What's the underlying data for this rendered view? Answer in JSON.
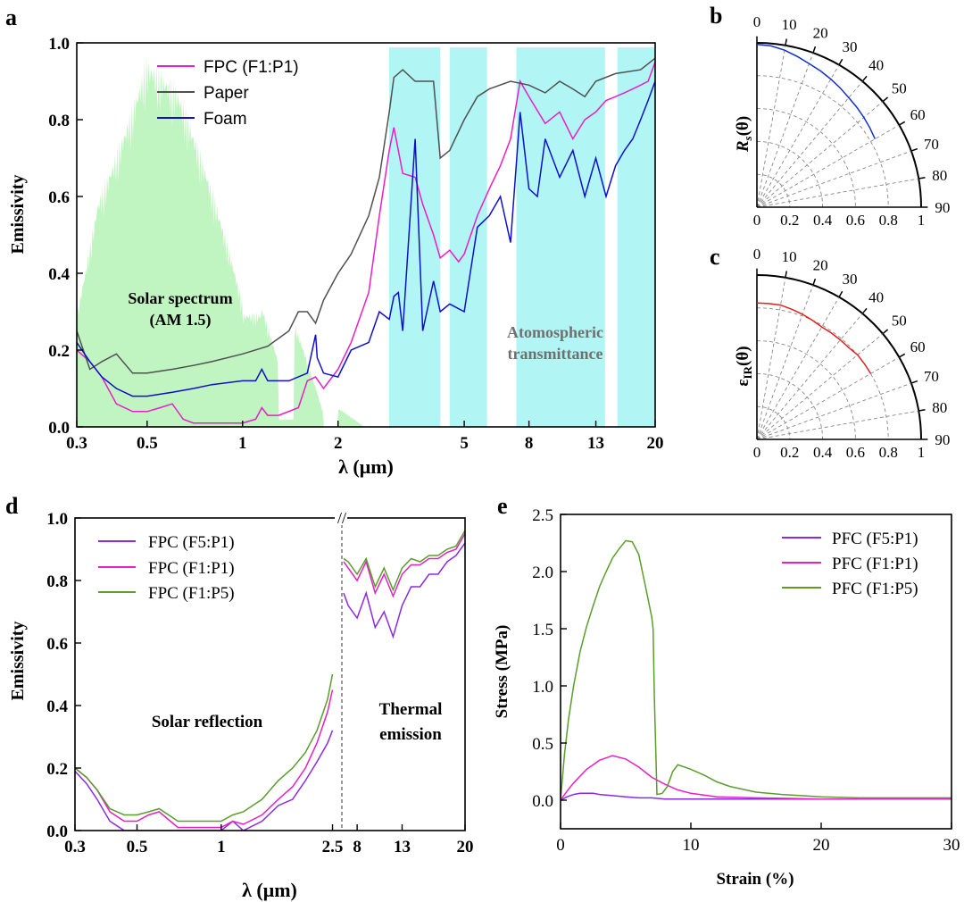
{
  "chart_data": [
    {
      "id": "a",
      "type": "line",
      "panel_label": "a",
      "title": "",
      "xlabel": "λ (μm)",
      "ylabel": "Emissivity",
      "xscale": "log",
      "xlim": [
        0.3,
        20
      ],
      "ylim": [
        0,
        1.0
      ],
      "xticks": [
        0.3,
        0.5,
        1,
        2,
        5,
        8,
        13,
        20
      ],
      "xtick_labels": [
        "0.3",
        "0.5",
        "1",
        "2",
        "5",
        "8",
        "13",
        "20"
      ],
      "yticks": [
        0.0,
        0.2,
        0.4,
        0.6,
        0.8,
        1.0
      ],
      "ytick_labels": [
        "0.0",
        "0.2",
        "0.4",
        "0.6",
        "0.8",
        "1.0"
      ],
      "legend_position": "top-left",
      "series": [
        {
          "name": "FPC (F1:P1)",
          "color": "#e81ec8",
          "x": [
            0.3,
            0.33,
            0.36,
            0.4,
            0.45,
            0.5,
            0.55,
            0.6,
            0.65,
            0.7,
            0.8,
            1.0,
            1.1,
            1.15,
            1.2,
            1.3,
            1.5,
            1.6,
            1.7,
            1.8,
            2.0,
            2.2,
            2.5,
            2.7,
            2.9,
            3.0,
            3.2,
            3.5,
            3.7,
            4.0,
            4.2,
            4.5,
            4.8,
            5.0,
            5.5,
            6.0,
            6.5,
            7.0,
            7.5,
            8.0,
            9.0,
            10.0,
            11.0,
            12.0,
            13.0,
            14.0,
            15.0,
            16.0,
            17.0,
            18.0,
            19.0,
            20.0
          ],
          "y": [
            0.2,
            0.17,
            0.13,
            0.06,
            0.04,
            0.04,
            0.05,
            0.06,
            0.02,
            0.01,
            0.01,
            0.01,
            0.02,
            0.05,
            0.03,
            0.03,
            0.05,
            0.12,
            0.13,
            0.1,
            0.15,
            0.22,
            0.35,
            0.55,
            0.72,
            0.78,
            0.66,
            0.65,
            0.58,
            0.5,
            0.44,
            0.46,
            0.43,
            0.45,
            0.55,
            0.62,
            0.68,
            0.75,
            0.9,
            0.86,
            0.79,
            0.82,
            0.75,
            0.8,
            0.82,
            0.85,
            0.86,
            0.87,
            0.88,
            0.89,
            0.9,
            0.95
          ]
        },
        {
          "name": "Paper",
          "color": "#505050",
          "x": [
            0.3,
            0.33,
            0.36,
            0.4,
            0.45,
            0.5,
            0.6,
            0.7,
            0.8,
            1.0,
            1.2,
            1.4,
            1.5,
            1.6,
            1.7,
            1.8,
            2.0,
            2.2,
            2.5,
            2.7,
            2.9,
            3.0,
            3.2,
            3.5,
            4.0,
            4.2,
            4.5,
            5.0,
            5.5,
            6.0,
            7.0,
            8.0,
            9.0,
            10.0,
            11.0,
            12.0,
            13.0,
            15.0,
            18.0,
            20.0
          ],
          "y": [
            0.25,
            0.15,
            0.17,
            0.19,
            0.14,
            0.14,
            0.15,
            0.16,
            0.17,
            0.19,
            0.21,
            0.25,
            0.3,
            0.3,
            0.27,
            0.33,
            0.4,
            0.45,
            0.55,
            0.65,
            0.82,
            0.91,
            0.93,
            0.9,
            0.9,
            0.7,
            0.72,
            0.8,
            0.86,
            0.88,
            0.9,
            0.89,
            0.87,
            0.9,
            0.88,
            0.86,
            0.9,
            0.92,
            0.93,
            0.96
          ]
        },
        {
          "name": "Foam",
          "color": "#1010c8",
          "x": [
            0.3,
            0.33,
            0.36,
            0.4,
            0.45,
            0.5,
            0.6,
            0.7,
            0.8,
            1.0,
            1.1,
            1.15,
            1.2,
            1.4,
            1.6,
            1.7,
            1.72,
            1.8,
            2.0,
            2.2,
            2.5,
            2.7,
            2.9,
            3.0,
            3.1,
            3.2,
            3.5,
            3.7,
            4.0,
            4.2,
            4.5,
            5.0,
            5.5,
            6.0,
            6.5,
            7.0,
            7.5,
            8.0,
            8.5,
            9.0,
            10.0,
            11.0,
            12.0,
            13.0,
            14.0,
            15.0,
            16.0,
            17.0,
            18.0,
            19.0,
            20.0
          ],
          "y": [
            0.22,
            0.17,
            0.13,
            0.1,
            0.08,
            0.08,
            0.09,
            0.1,
            0.11,
            0.12,
            0.12,
            0.15,
            0.12,
            0.12,
            0.14,
            0.24,
            0.18,
            0.14,
            0.13,
            0.2,
            0.22,
            0.3,
            0.28,
            0.34,
            0.35,
            0.25,
            0.75,
            0.25,
            0.38,
            0.3,
            0.32,
            0.3,
            0.52,
            0.55,
            0.6,
            0.48,
            0.82,
            0.62,
            0.6,
            0.75,
            0.65,
            0.72,
            0.6,
            0.7,
            0.6,
            0.68,
            0.72,
            0.75,
            0.8,
            0.85,
            0.9
          ]
        }
      ],
      "annotations": [
        "Solar spectrum",
        "(AM 1.5)",
        "Atomospheric",
        "transmittance"
      ]
    },
    {
      "id": "b",
      "type": "polar",
      "panel_label": "b",
      "ylabel_main": "R",
      "ylabel_sub": "s",
      "ylabel_arg": "(θ)",
      "angle_ticks": [
        0,
        10,
        20,
        30,
        40,
        50,
        60,
        70,
        80,
        90
      ],
      "angle_tick_labels": [
        "0",
        "10",
        "20",
        "30",
        "40",
        "50",
        "60",
        "70",
        "80",
        "90"
      ],
      "radial_ticks": [
        0,
        0.2,
        0.4,
        0.6,
        0.8,
        1
      ],
      "radial_tick_labels": [
        "0",
        "0.2",
        "0.4",
        "0.6",
        "0.8",
        "1"
      ],
      "series": [
        {
          "color": "#1030d0",
          "theta": [
            0,
            5,
            10,
            15,
            20,
            25,
            30,
            35,
            40,
            45,
            50,
            55,
            60
          ],
          "r": [
            0.99,
            0.985,
            0.97,
            0.95,
            0.93,
            0.915,
            0.9,
            0.885,
            0.87,
            0.86,
            0.85,
            0.84,
            0.83
          ]
        }
      ]
    },
    {
      "id": "c",
      "type": "polar",
      "panel_label": "c",
      "ylabel_main": "ε",
      "ylabel_sub": "IR",
      "ylabel_arg": "(θ)",
      "angle_ticks": [
        0,
        10,
        20,
        30,
        40,
        50,
        60,
        70,
        80,
        90
      ],
      "angle_tick_labels": [
        "0",
        "10",
        "20",
        "30",
        "40",
        "50",
        "60",
        "70",
        "80",
        "90"
      ],
      "radial_ticks": [
        0,
        0.2,
        0.4,
        0.6,
        0.8,
        1
      ],
      "radial_tick_labels": [
        "0",
        "0.2",
        "0.4",
        "0.6",
        "0.8",
        "1"
      ],
      "series": [
        {
          "color": "#e02020",
          "theta": [
            0,
            5,
            10,
            15,
            20,
            25,
            30,
            35,
            40,
            45,
            50,
            55,
            60
          ],
          "r": [
            0.83,
            0.83,
            0.83,
            0.82,
            0.81,
            0.8,
            0.79,
            0.79,
            0.79,
            0.79,
            0.8,
            0.8,
            0.8
          ]
        }
      ]
    },
    {
      "id": "d",
      "type": "line",
      "panel_label": "d",
      "xlabel": "λ (μm)",
      "ylabel": "Emissivity",
      "ylim": [
        0,
        1.0
      ],
      "xticks_left": [
        0.3,
        0.5,
        1,
        2.5
      ],
      "xtick_labels_left": [
        "0.3",
        "0.5",
        "1",
        "2.5"
      ],
      "xticks_right": [
        8,
        13,
        20
      ],
      "xtick_labels_right": [
        "8",
        "13",
        "20"
      ],
      "break_symbol": "//",
      "yticks": [
        0.0,
        0.2,
        0.4,
        0.6,
        0.8,
        1.0
      ],
      "ytick_labels": [
        "0.0",
        "0.2",
        "0.4",
        "0.6",
        "0.8",
        "1.0"
      ],
      "legend_position": "top-left",
      "series": [
        {
          "name": "FPC (F5:P1)",
          "color": "#8a2be2",
          "x_left": [
            0.3,
            0.33,
            0.36,
            0.4,
            0.45,
            0.5,
            0.55,
            0.6,
            0.7,
            0.8,
            1.0,
            1.1,
            1.2,
            1.4,
            1.6,
            1.8,
            2.0,
            2.2,
            2.4,
            2.5
          ],
          "y_left": [
            0.19,
            0.15,
            0.1,
            0.03,
            0.0,
            0.0,
            0.0,
            0.0,
            0.0,
            0.0,
            0.0,
            0.03,
            0.0,
            0.03,
            0.08,
            0.1,
            0.16,
            0.22,
            0.28,
            0.32
          ],
          "x_right": [
            6.5,
            7,
            8,
            9,
            10,
            11,
            12,
            13,
            14,
            15,
            16,
            17,
            18,
            19,
            20
          ],
          "y_right": [
            0.76,
            0.72,
            0.68,
            0.76,
            0.65,
            0.7,
            0.62,
            0.72,
            0.78,
            0.78,
            0.82,
            0.82,
            0.86,
            0.88,
            0.92
          ]
        },
        {
          "name": "FPC (F1:P1)",
          "color": "#e81ec8",
          "x_left": [
            0.3,
            0.33,
            0.36,
            0.4,
            0.45,
            0.5,
            0.55,
            0.6,
            0.7,
            0.8,
            1.0,
            1.1,
            1.2,
            1.4,
            1.6,
            1.8,
            2.0,
            2.2,
            2.4,
            2.5
          ],
          "y_left": [
            0.2,
            0.17,
            0.13,
            0.06,
            0.03,
            0.03,
            0.05,
            0.06,
            0.01,
            0.01,
            0.01,
            0.03,
            0.02,
            0.05,
            0.1,
            0.14,
            0.2,
            0.28,
            0.38,
            0.45
          ],
          "x_right": [
            6.5,
            7,
            8,
            9,
            10,
            11,
            12,
            13,
            14,
            15,
            16,
            17,
            18,
            19,
            20
          ],
          "y_right": [
            0.86,
            0.84,
            0.8,
            0.86,
            0.76,
            0.82,
            0.75,
            0.82,
            0.85,
            0.85,
            0.87,
            0.87,
            0.89,
            0.9,
            0.95
          ]
        },
        {
          "name": "FPC (F1:P5)",
          "color": "#5a9e2a",
          "x_left": [
            0.3,
            0.33,
            0.36,
            0.4,
            0.45,
            0.5,
            0.55,
            0.6,
            0.7,
            0.8,
            1.0,
            1.1,
            1.2,
            1.4,
            1.6,
            1.8,
            2.0,
            2.2,
            2.4,
            2.5
          ],
          "y_left": [
            0.2,
            0.17,
            0.13,
            0.07,
            0.05,
            0.05,
            0.06,
            0.07,
            0.03,
            0.03,
            0.03,
            0.05,
            0.06,
            0.1,
            0.16,
            0.2,
            0.25,
            0.32,
            0.42,
            0.5
          ],
          "x_right": [
            6.5,
            7,
            8,
            9,
            10,
            11,
            12,
            13,
            14,
            15,
            16,
            17,
            18,
            19,
            20
          ],
          "y_right": [
            0.87,
            0.86,
            0.82,
            0.87,
            0.78,
            0.84,
            0.77,
            0.84,
            0.87,
            0.86,
            0.88,
            0.88,
            0.9,
            0.91,
            0.96
          ]
        }
      ],
      "annotations": [
        "Solar reflection",
        "Thermal",
        "emission"
      ]
    },
    {
      "id": "e",
      "type": "line",
      "panel_label": "e",
      "xlabel": "Strain (%)",
      "ylabel": "Stress (MPa)",
      "xlim": [
        0,
        30
      ],
      "ylim": [
        -0.25,
        2.5
      ],
      "xticks": [
        0,
        10,
        20,
        30
      ],
      "xtick_labels": [
        "0",
        "10",
        "20",
        "30"
      ],
      "yticks": [
        0.0,
        0.5,
        1.0,
        1.5,
        2.0,
        2.5
      ],
      "ytick_labels": [
        "0.0",
        "0.5",
        "1.0",
        "1.5",
        "2.0",
        "2.5"
      ],
      "legend_position": "top-right",
      "series": [
        {
          "name": "PFC (F5:P1)",
          "color": "#8a2be2",
          "x": [
            0,
            0.5,
            1,
            1.5,
            2,
            2.5,
            3,
            4,
            5,
            6,
            7,
            8,
            10,
            15,
            20,
            25,
            30
          ],
          "y": [
            0,
            0.03,
            0.05,
            0.06,
            0.06,
            0.06,
            0.05,
            0.04,
            0.03,
            0.02,
            0.02,
            0.01,
            0.01,
            0.01,
            0.01,
            0.01,
            0.01
          ]
        },
        {
          "name": "PFC (F1:P1)",
          "color": "#e81ec8",
          "x": [
            0,
            0.5,
            1,
            2,
            3,
            4,
            5,
            6,
            7,
            8,
            9,
            10,
            12,
            15,
            20,
            25,
            30
          ],
          "y": [
            0,
            0.08,
            0.15,
            0.27,
            0.35,
            0.39,
            0.36,
            0.29,
            0.2,
            0.14,
            0.09,
            0.06,
            0.03,
            0.02,
            0.01,
            0.01,
            0.01
          ]
        },
        {
          "name": "PFC (F1:P5)",
          "color": "#5a9e2a",
          "x": [
            0,
            0.3,
            0.6,
            1,
            1.5,
            2,
            2.5,
            3,
            3.5,
            4,
            4.5,
            5,
            5.5,
            6,
            6.5,
            7,
            7.1,
            7.2,
            7.4,
            7.8,
            8.2,
            8.6,
            9,
            10,
            11,
            12,
            13,
            15,
            17,
            20,
            23,
            25,
            30
          ],
          "y": [
            0,
            0.4,
            0.7,
            1.0,
            1.3,
            1.52,
            1.7,
            1.87,
            2.0,
            2.12,
            2.2,
            2.27,
            2.26,
            2.15,
            1.88,
            1.6,
            1.5,
            0.9,
            0.05,
            0.06,
            0.12,
            0.25,
            0.31,
            0.27,
            0.22,
            0.16,
            0.12,
            0.07,
            0.05,
            0.03,
            0.02,
            0.02,
            0.02
          ]
        }
      ]
    }
  ]
}
